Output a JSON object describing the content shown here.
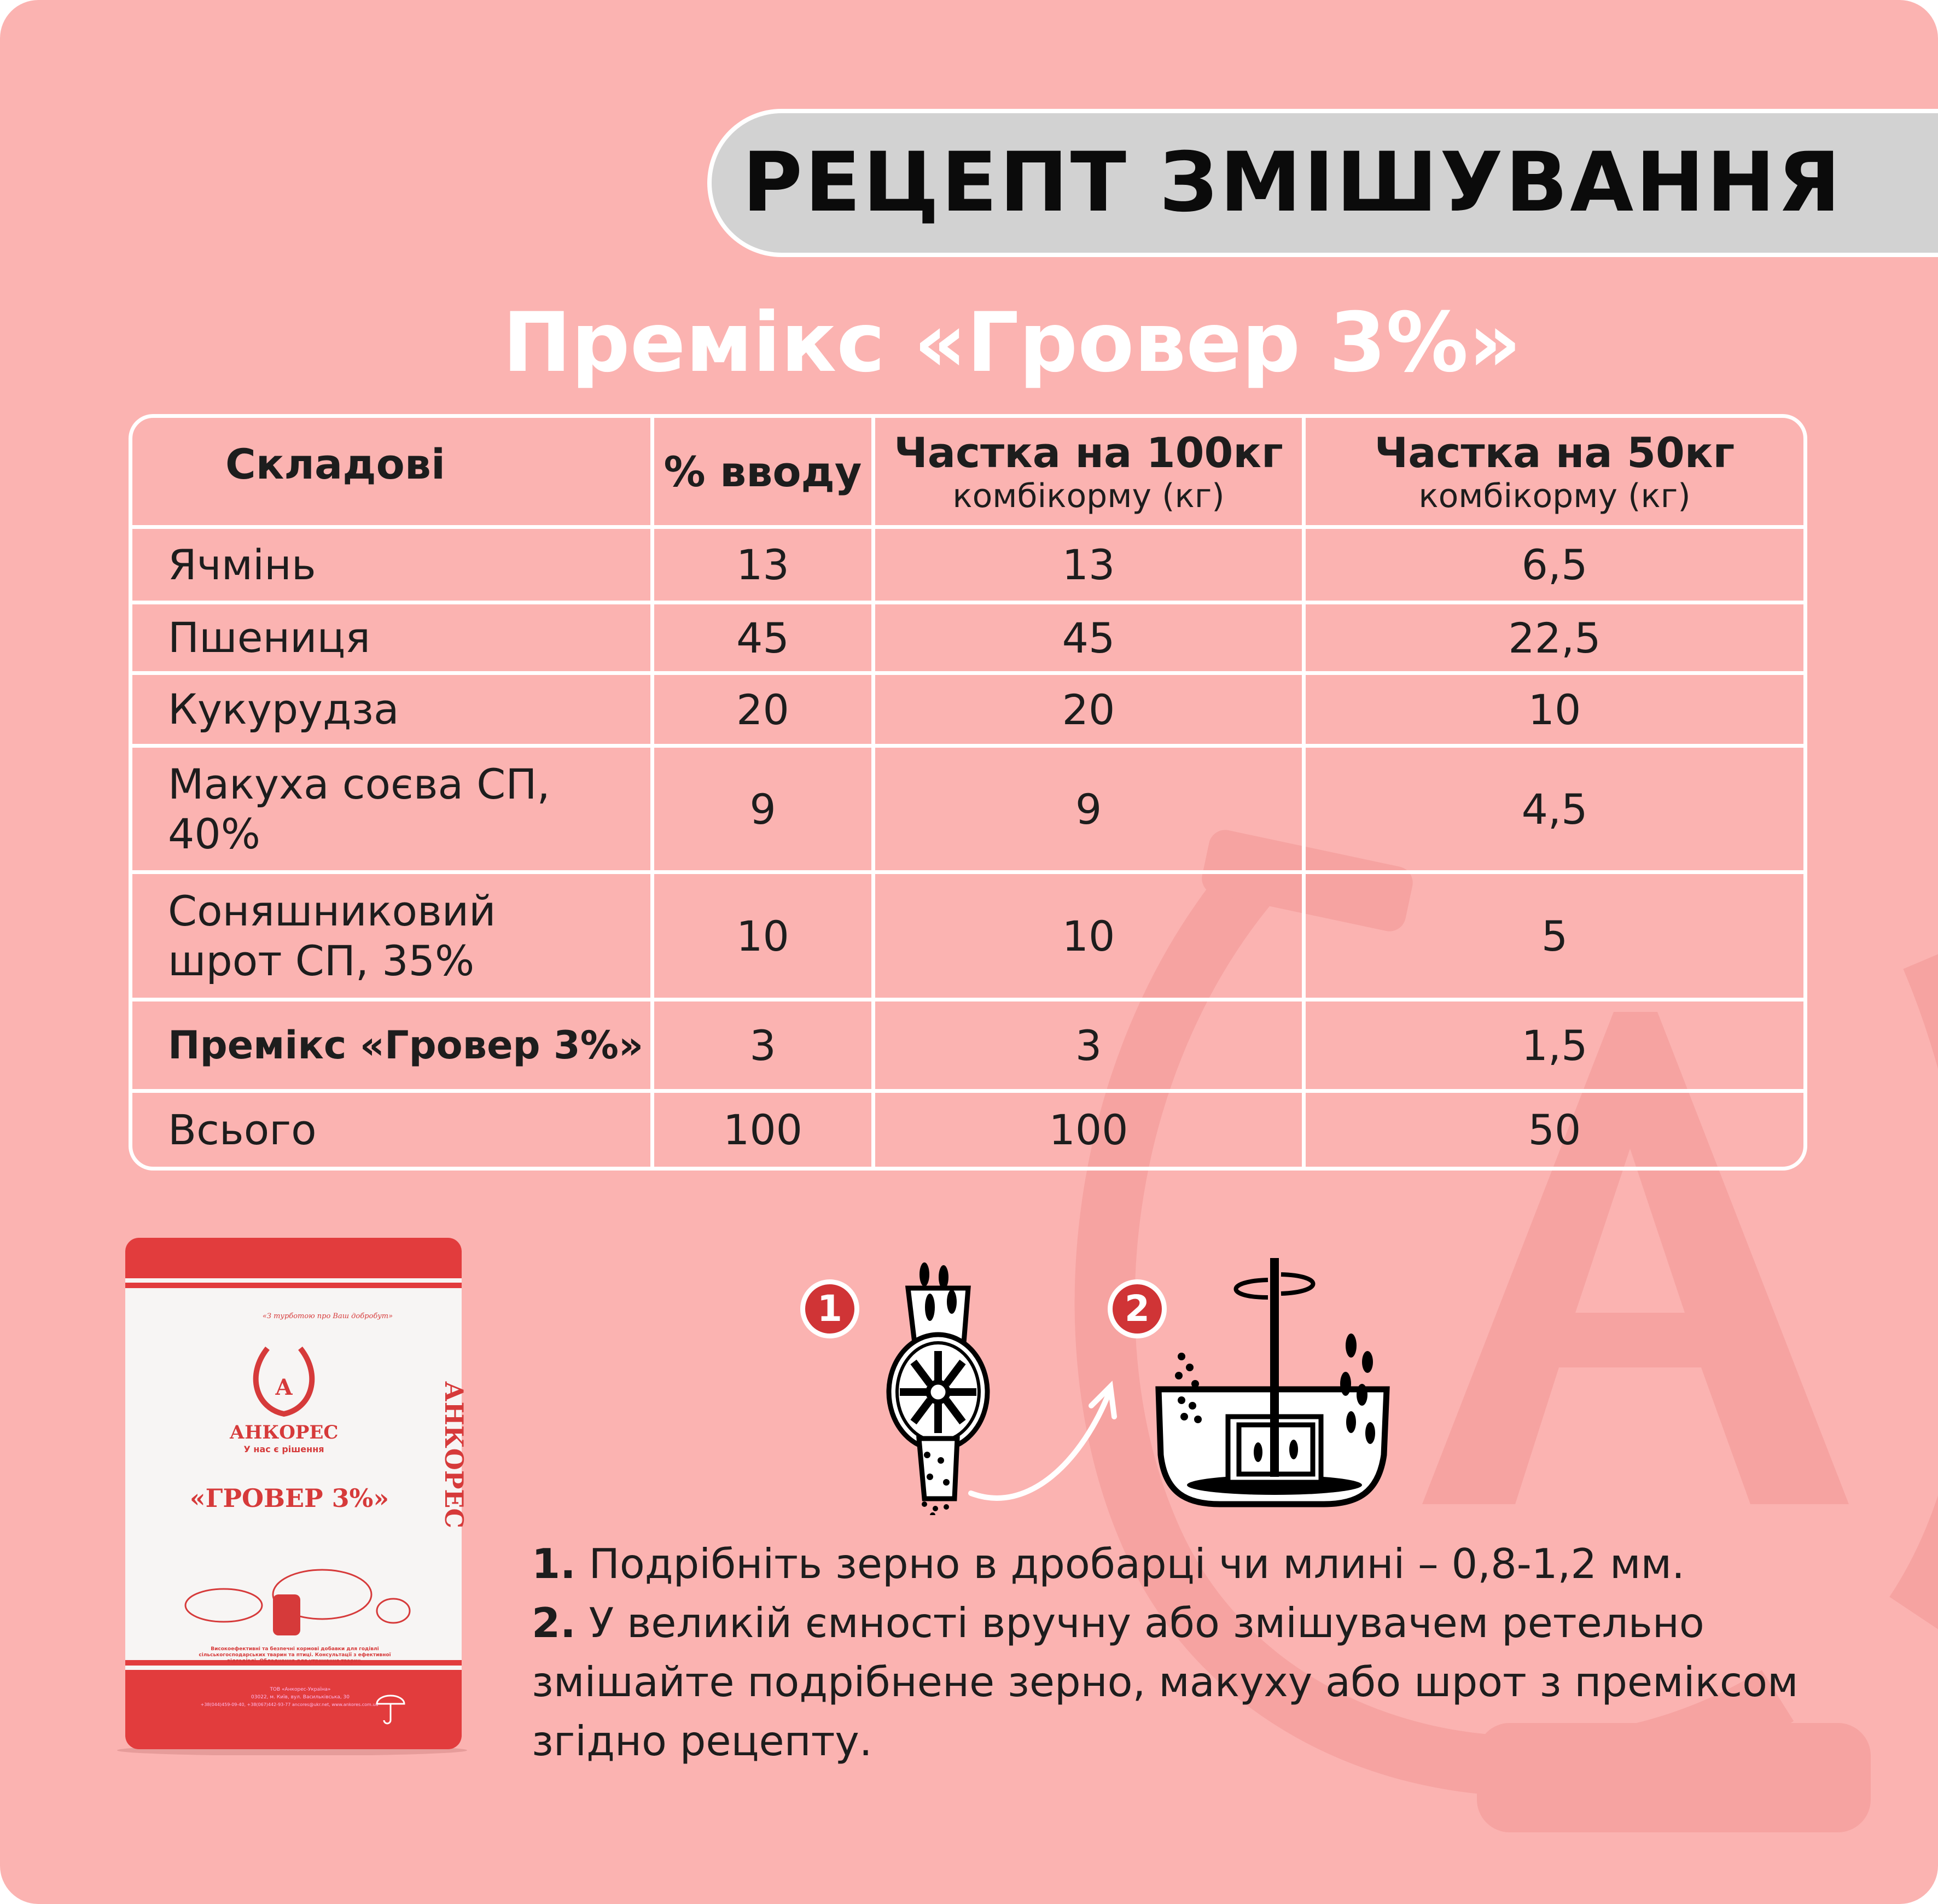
{
  "header": {
    "title": "РЕЦЕПТ ЗМІШУВАННЯ"
  },
  "subtitle": "Премікс «Гровер 3%»",
  "table": {
    "headers": [
      {
        "title": "Складові"
      },
      {
        "title": "% вводу"
      },
      {
        "title": "Частка на 100кг",
        "sub": "комбікорму (кг)"
      },
      {
        "title": "Частка на 50кг",
        "sub": "комбікорму (кг)"
      }
    ],
    "rows": [
      {
        "name": "Ячмінь",
        "pct": "13",
        "per100": "13",
        "per50": "6,5"
      },
      {
        "name": "Пшениця",
        "pct": "45",
        "per100": "45",
        "per50": "22,5"
      },
      {
        "name": "Кукурудза",
        "pct": "20",
        "per100": "20",
        "per50": "10"
      },
      {
        "name": "Макуха соєва СП, 40%",
        "pct": "9",
        "per100": "9",
        "per50": "4,5"
      },
      {
        "name": "Соняшниковий шрот СП, 35%",
        "pct": "10",
        "per100": "10",
        "per50": "5"
      },
      {
        "name": "Премікс «Гровер 3%»",
        "pct": "3",
        "per100": "3",
        "per50": "1,5"
      },
      {
        "name": "Всього",
        "pct": "100",
        "per100": "100",
        "per50": "50"
      }
    ]
  },
  "bag": {
    "slogan": "«З турботою про Ваш добробут»",
    "brand": "АНКОРЕС",
    "tagline": "У нас є рішення",
    "product": "«ГРОВЕР 3%»",
    "description": "Високоефективні та безпечні кормові добавки для годівлі сільськогосподарських тварин та птиці. Консультації з ефективної відгодівлі. Обладнання для утримання тварин.",
    "company": "ТОВ «Анкорес-Україна»",
    "address": "03022, м. Київ, вул. Васильківська, 30",
    "contacts": "+38(044)459-09-40, +38(067)442-93-77 ancores@ukr.net, www.ankores.com.ua",
    "side_text": "АНКОРЕС"
  },
  "steps": {
    "badge1": "1",
    "badge2": "2",
    "icons": [
      "grain-grinder-icon",
      "arrow-icon",
      "mixer-bowl-icon"
    ]
  },
  "instructions": [
    {
      "num": "1.",
      "text": " Подрібніть зерно в дробарці чи млині – 0,8-1,2 мм."
    },
    {
      "num": "2.",
      "text": " У великій ємності вручну або змішувачем ретельно змішайте подрібнене зерно, макуху або шрот з преміксом згідно рецепту."
    }
  ],
  "colors": {
    "background": "#fbb3b1",
    "accent": "#d03436",
    "header_pill": "#d2d2d2",
    "watermark": "#f4a19f"
  }
}
